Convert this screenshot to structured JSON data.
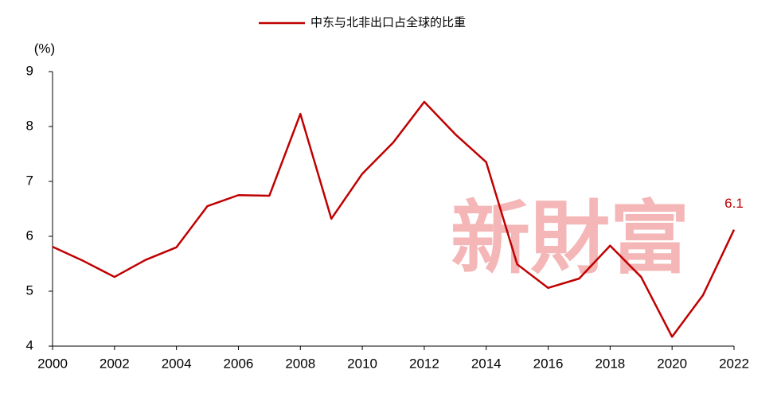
{
  "chart_data": {
    "type": "line",
    "y_label": "(%)",
    "watermark": "新財富",
    "x": [
      2000,
      2001,
      2002,
      2003,
      2004,
      2005,
      2006,
      2007,
      2008,
      2009,
      2010,
      2011,
      2012,
      2013,
      2014,
      2015,
      2016,
      2017,
      2018,
      2019,
      2020,
      2021,
      2022
    ],
    "series": [
      {
        "name": "中东与北非出口占全球的比重",
        "color": "#c00000",
        "values": [
          5.81,
          5.55,
          5.26,
          5.57,
          5.8,
          6.55,
          6.75,
          6.74,
          8.23,
          6.32,
          7.14,
          7.71,
          8.45,
          7.86,
          7.35,
          5.49,
          5.06,
          5.23,
          5.83,
          5.26,
          4.17,
          4.93,
          6.12
        ],
        "value_labels": [
          null,
          null,
          null,
          null,
          null,
          null,
          null,
          null,
          null,
          null,
          null,
          null,
          null,
          null,
          null,
          null,
          null,
          null,
          null,
          null,
          null,
          null,
          "6.1"
        ]
      }
    ],
    "xlim": [
      2000,
      2022
    ],
    "xticks": [
      2000,
      2002,
      2004,
      2006,
      2008,
      2010,
      2012,
      2014,
      2016,
      2018,
      2020,
      2022
    ],
    "ylim": [
      4,
      9
    ],
    "yticks": [
      4,
      5,
      6,
      7,
      8,
      9
    ],
    "grid": false,
    "legend": "top"
  }
}
